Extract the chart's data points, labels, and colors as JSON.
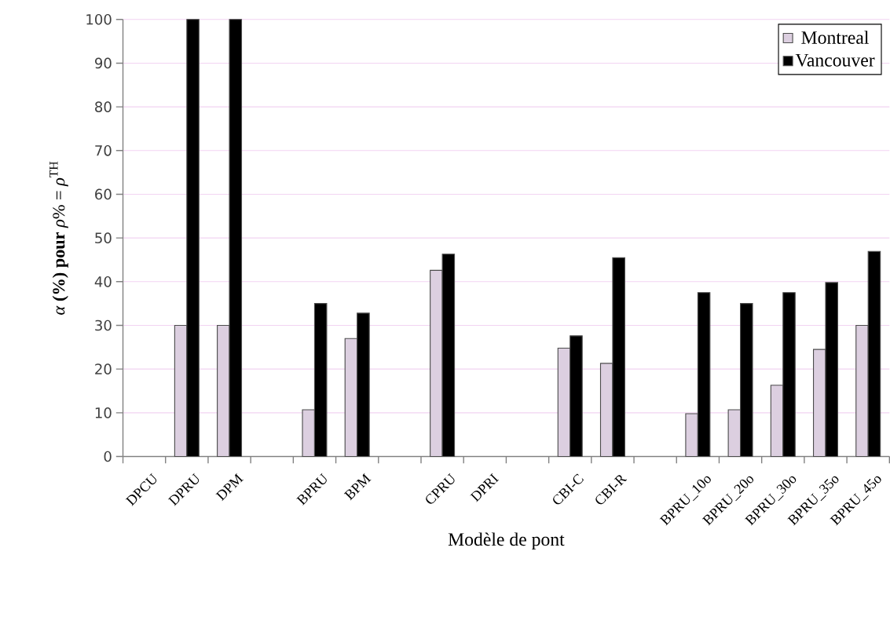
{
  "chart_data": {
    "type": "bar",
    "xlabel": "Modèle de pont",
    "ylabel": "*α* **(%) pour** *ρ*% = *ρ*$^{TH}$",
    "categories": [
      "DPCU",
      "DPRU",
      "DPM",
      null,
      "BPRU",
      "BPM",
      null,
      "CPRU",
      "DPRI",
      null,
      "CBI-C",
      "CBI-R",
      null,
      "BPRU_10o",
      "BPRU_20o",
      "BPRU_30o",
      "BPRU_35o",
      "BPRU_45o"
    ],
    "series": [
      {
        "name": "Montreal",
        "color": "#dccfe0",
        "values": [
          null,
          30,
          30,
          null,
          10.7,
          27,
          null,
          42.6,
          null,
          null,
          24.8,
          21.3,
          null,
          9.8,
          10.7,
          16.3,
          24.5,
          30
        ]
      },
      {
        "name": "Vancouver",
        "color": "#000000",
        "values": [
          null,
          100,
          100,
          null,
          35,
          32.8,
          null,
          46.3,
          null,
          null,
          27.6,
          45.5,
          null,
          37.5,
          35,
          37.5,
          39.8,
          46.9
        ]
      }
    ],
    "ylim": [
      0,
      100
    ],
    "yticks": [
      0,
      10,
      20,
      30,
      40,
      50,
      60,
      70,
      80,
      90,
      100
    ],
    "grid": "y",
    "legend": "top right"
  }
}
